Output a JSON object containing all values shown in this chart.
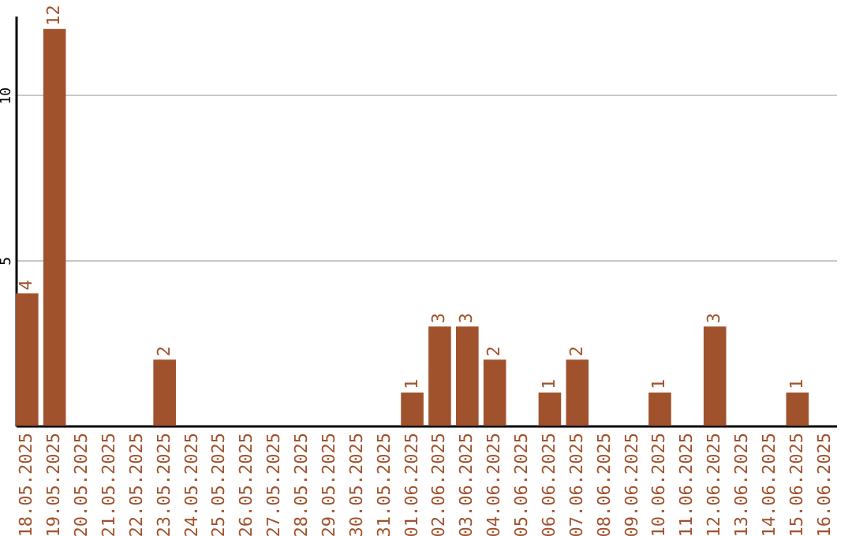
{
  "chart_data": {
    "type": "bar",
    "categories": [
      "18.05.2025",
      "19.05.2025",
      "20.05.2025",
      "21.05.2025",
      "22.05.2025",
      "23.05.2025",
      "24.05.2025",
      "25.05.2025",
      "26.05.2025",
      "27.05.2025",
      "28.05.2025",
      "29.05.2025",
      "30.05.2025",
      "31.05.2025",
      "01.06.2025",
      "02.06.2025",
      "03.06.2025",
      "04.06.2025",
      "05.06.2025",
      "06.06.2025",
      "07.06.2025",
      "08.06.2025",
      "09.06.2025",
      "10.06.2025",
      "11.06.2025",
      "12.06.2025",
      "13.06.2025",
      "14.06.2025",
      "15.06.2025",
      "16.06.2025"
    ],
    "values": [
      4,
      12,
      0,
      0,
      0,
      2,
      0,
      0,
      0,
      0,
      0,
      0,
      0,
      0,
      1,
      3,
      3,
      2,
      0,
      1,
      2,
      0,
      0,
      1,
      0,
      3,
      0,
      0,
      1,
      0
    ],
    "value_labels": [
      "4",
      "12",
      null,
      null,
      null,
      "2",
      null,
      null,
      null,
      null,
      null,
      null,
      null,
      null,
      "1",
      "3",
      "3",
      "2",
      null,
      "1",
      "2",
      null,
      null,
      "1",
      null,
      "3",
      null,
      null,
      "1",
      null
    ],
    "color": "#a0522d",
    "ylim": [
      0,
      12.4
    ],
    "yticks": [
      5,
      10
    ],
    "grid": "y"
  }
}
